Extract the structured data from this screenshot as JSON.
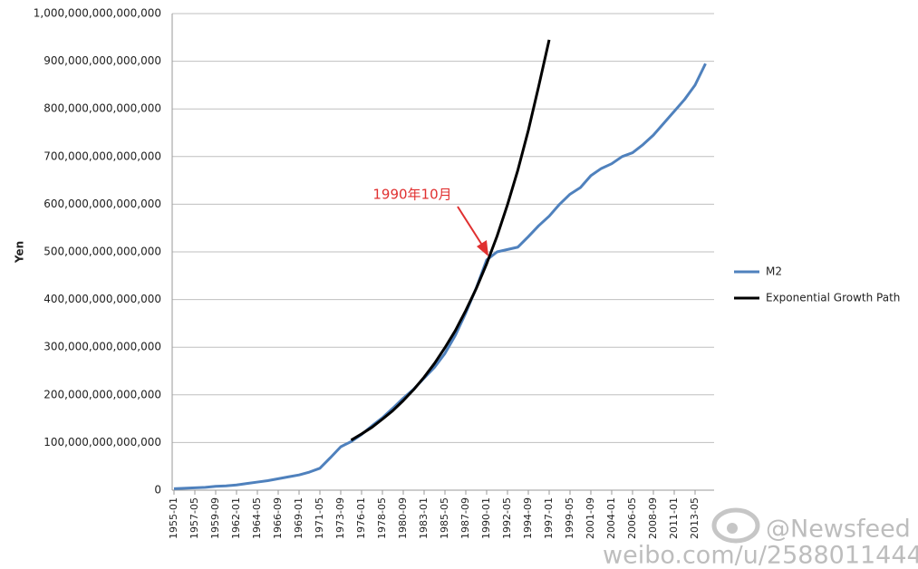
{
  "chart_data": {
    "type": "line",
    "y_label": "Yen",
    "annotation": "1990年10月",
    "watermark": {
      "handle": "@Newsfeed",
      "url": "weibo.com/u/2588011444"
    },
    "categories": [
      "1955-01",
      null,
      "1957-05",
      null,
      "1959-09",
      null,
      "1962-01",
      null,
      "1964-05",
      null,
      "1966-09",
      null,
      "1969-01",
      null,
      "1971-05",
      null,
      "1973-09",
      null,
      "1976-01",
      null,
      "1978-05",
      null,
      "1980-09",
      null,
      "1983-01",
      null,
      "1985-05",
      null,
      "1987-09",
      null,
      "1990-01",
      null,
      "1992-05",
      null,
      "1994-09",
      null,
      "1997-01",
      null,
      "1999-05",
      null,
      "2001-09",
      null,
      "2004-01",
      null,
      "2006-05",
      null,
      "2008-09",
      null,
      "2011-01",
      null,
      "2013-05",
      null
    ],
    "series": [
      {
        "name": "M2",
        "color": "#4f81bd",
        "values": [
          3000000000000.0,
          4000000000000.0,
          5000000000000.0,
          6000000000000.0,
          8000000000000.0,
          9000000000000.0,
          11000000000000.0,
          14000000000000.0,
          17000000000000.0,
          20000000000000.0,
          24000000000000.0,
          28000000000000.0,
          32000000000000.0,
          38000000000000.0,
          46000000000000.0,
          68000000000000.0,
          91000000000000.0,
          102000000000000.0,
          117000000000000.0,
          135000000000000.0,
          152000000000000.0,
          172000000000000.0,
          193000000000000.0,
          212000000000000.0,
          235000000000000.0,
          258000000000000.0,
          287000000000000.0,
          325000000000000.0,
          372000000000000.0,
          424000000000000.0,
          483000000000000.0,
          500000000000000.0,
          505000000000000.0,
          510000000000000.0,
          532000000000000.0,
          555000000000000.0,
          575000000000000.0,
          600000000000000.0,
          621000000000000.0,
          635000000000000.0,
          660000000000000.0,
          675000000000000.0,
          685000000000000.0,
          700000000000000.0,
          708000000000000.0,
          725000000000000.0,
          745000000000000.0,
          770000000000000.0,
          795000000000000.0,
          820000000000000.0,
          850000000000000.0,
          895000000000000.0
        ]
      },
      {
        "name": "Exponential Growth Path",
        "color": "#000000",
        "values": [
          null,
          null,
          null,
          null,
          null,
          null,
          null,
          null,
          null,
          null,
          null,
          null,
          null,
          null,
          null,
          null,
          null,
          105000000000000.0,
          118000000000000.0,
          132000000000000.0,
          149000000000000.0,
          167000000000000.0,
          188000000000000.0,
          211000000000000.0,
          237000000000000.0,
          266000000000000.0,
          299000000000000.0,
          335000000000000.0,
          377000000000000.0,
          423000000000000.0,
          475000000000000.0,
          533000000000000.0,
          599000000000000.0,
          672000000000000.0,
          755000000000000.0,
          848000000000000.0,
          945000000000000.0,
          null,
          null,
          null,
          null,
          null,
          null,
          null,
          null,
          null,
          null,
          null,
          null,
          null,
          null,
          null
        ]
      }
    ],
    "ylim": [
      0,
      1000000000000000.0
    ],
    "yticks": [
      0,
      {
        "value": 100000000000000.0,
        "label": "100,000,000,000,000"
      },
      {
        "value": 200000000000000.0,
        "label": "200,000,000,000,000"
      },
      {
        "value": 300000000000000.0,
        "label": "300,000,000,000,000"
      },
      {
        "value": 400000000000000.0,
        "label": "400,000,000,000,000"
      },
      {
        "value": 500000000000000.0,
        "label": "500,000,000,000,000"
      },
      {
        "value": 600000000000000.0,
        "label": "600,000,000,000,000"
      },
      {
        "value": 700000000000000.0,
        "label": "700,000,000,000,000"
      },
      {
        "value": 800000000000000.0,
        "label": "800,000,000,000,000"
      },
      {
        "value": 900000000000000.0,
        "label": "900,000,000,000,000"
      },
      {
        "value": 1000000000000000.0,
        "label": "1,000,000,000,000,000"
      }
    ],
    "grid": true,
    "legend": "right"
  }
}
